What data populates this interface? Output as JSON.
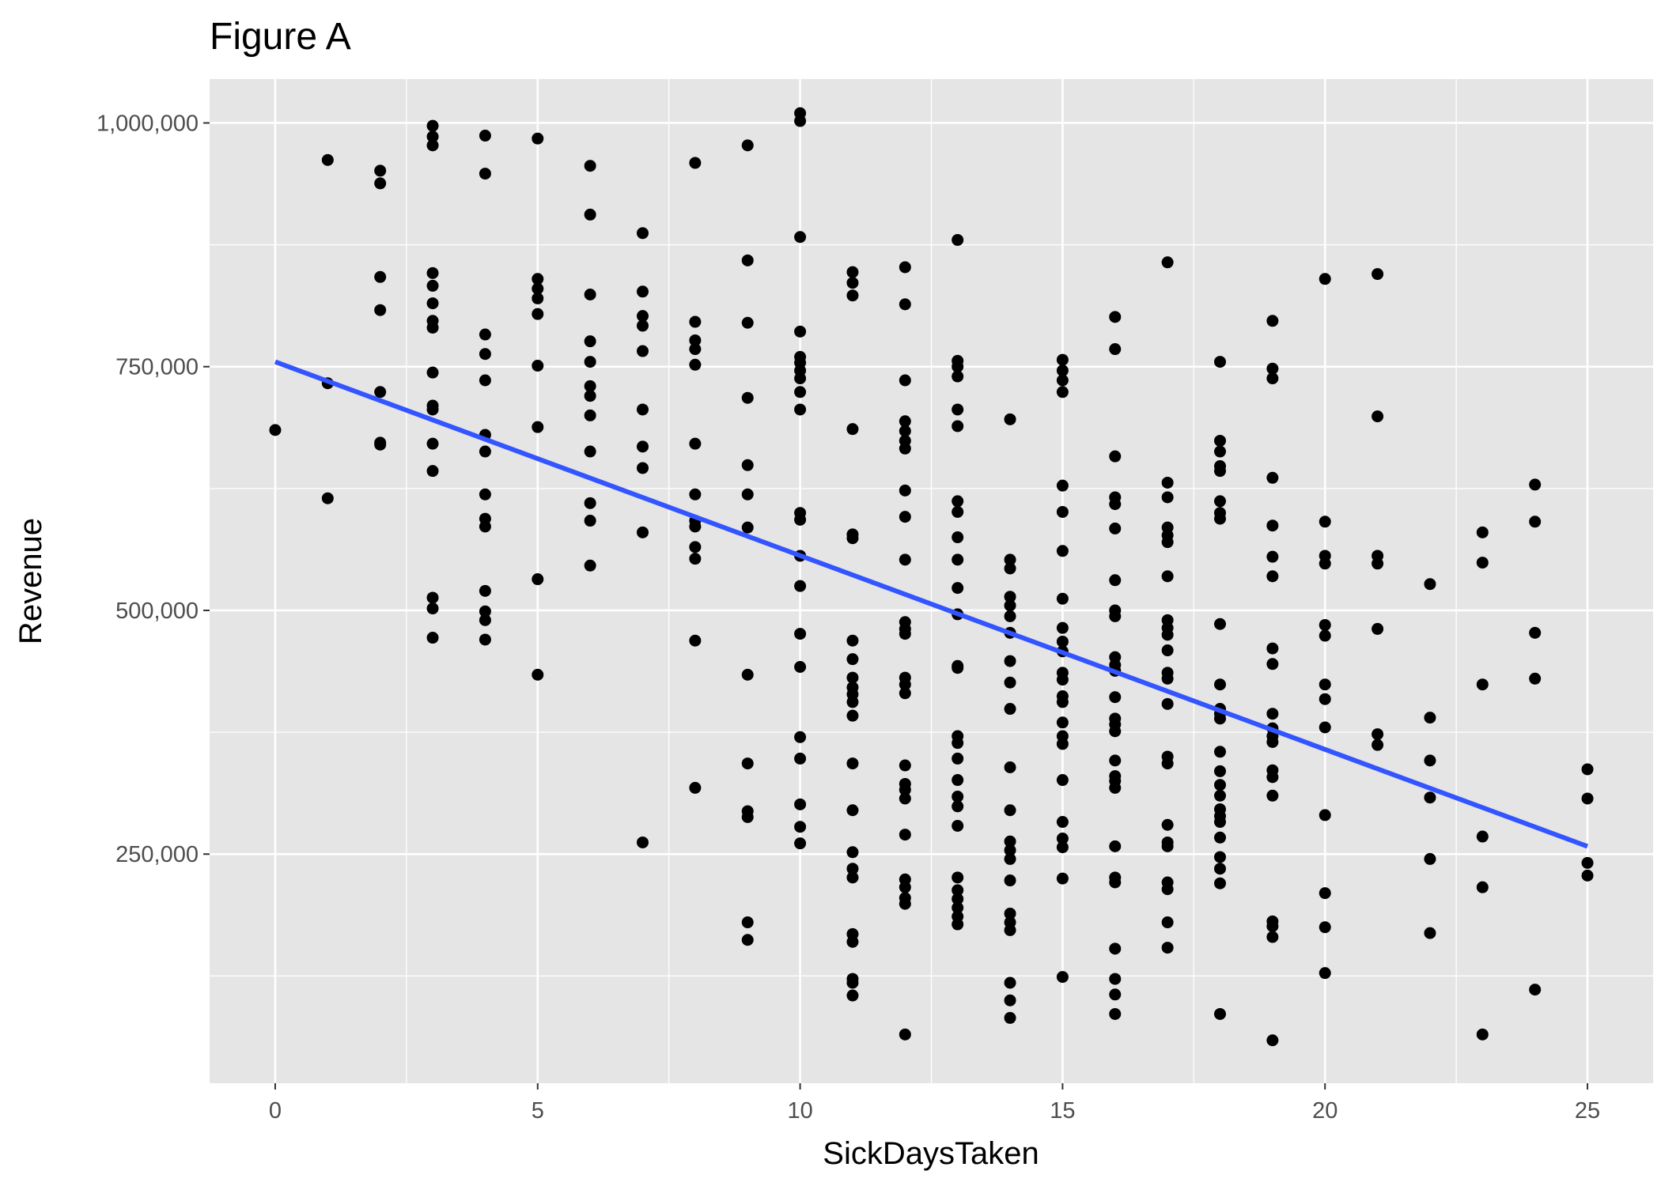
{
  "chart_data": {
    "type": "scatter",
    "title": "Figure A",
    "xlabel": "SickDaysTaken",
    "ylabel": "Revenue",
    "xlim": [
      -1.25,
      26.25
    ],
    "ylim": [
      15000,
      1045000
    ],
    "x_ticks": [
      0,
      5,
      10,
      15,
      20,
      25
    ],
    "x_tick_labels": [
      "0",
      "5",
      "10",
      "15",
      "20",
      "25"
    ],
    "y_ticks": [
      250000,
      500000,
      750000,
      1000000
    ],
    "y_tick_labels": [
      "250,000",
      "500,000",
      "750,000",
      "1,000,000"
    ],
    "grid": true,
    "legend": "none",
    "colors": {
      "panel_background": "#e5e5e5",
      "grid": "#ffffff",
      "points": "#000000",
      "trend_line": "#3355ff",
      "tick_label": "#4d4d4d",
      "tick_mark": "#333333"
    },
    "points": [
      [
        0,
        685000
      ],
      [
        1,
        962000
      ],
      [
        1,
        733000
      ],
      [
        1,
        615000
      ],
      [
        2,
        951000
      ],
      [
        2,
        938000
      ],
      [
        2,
        842000
      ],
      [
        2,
        808000
      ],
      [
        2,
        724000
      ],
      [
        2,
        672000
      ],
      [
        2,
        670000
      ],
      [
        3,
        997000
      ],
      [
        3,
        986000
      ],
      [
        3,
        977000
      ],
      [
        3,
        846000
      ],
      [
        3,
        833000
      ],
      [
        3,
        815000
      ],
      [
        3,
        797000
      ],
      [
        3,
        790000
      ],
      [
        3,
        744000
      ],
      [
        3,
        710000
      ],
      [
        3,
        706000
      ],
      [
        3,
        671000
      ],
      [
        3,
        643000
      ],
      [
        3,
        513000
      ],
      [
        3,
        502000
      ],
      [
        3,
        472000
      ],
      [
        4,
        987000
      ],
      [
        4,
        948000
      ],
      [
        4,
        783000
      ],
      [
        4,
        763000
      ],
      [
        4,
        736000
      ],
      [
        4,
        680000
      ],
      [
        4,
        663000
      ],
      [
        4,
        619000
      ],
      [
        4,
        594000
      ],
      [
        4,
        586000
      ],
      [
        4,
        520000
      ],
      [
        4,
        499000
      ],
      [
        4,
        490000
      ],
      [
        4,
        470000
      ],
      [
        5,
        984000
      ],
      [
        5,
        840000
      ],
      [
        5,
        830000
      ],
      [
        5,
        820000
      ],
      [
        5,
        804000
      ],
      [
        5,
        751000
      ],
      [
        5,
        688000
      ],
      [
        5,
        532000
      ],
      [
        5,
        434000
      ],
      [
        6,
        956000
      ],
      [
        6,
        906000
      ],
      [
        6,
        824000
      ],
      [
        6,
        776000
      ],
      [
        6,
        755000
      ],
      [
        6,
        730000
      ],
      [
        6,
        720000
      ],
      [
        6,
        700000
      ],
      [
        6,
        663000
      ],
      [
        6,
        610000
      ],
      [
        6,
        592000
      ],
      [
        6,
        546000
      ],
      [
        7,
        887000
      ],
      [
        7,
        827000
      ],
      [
        7,
        802000
      ],
      [
        7,
        792000
      ],
      [
        7,
        766000
      ],
      [
        7,
        706000
      ],
      [
        7,
        668000
      ],
      [
        7,
        646000
      ],
      [
        7,
        580000
      ],
      [
        7,
        262000
      ],
      [
        8,
        959000
      ],
      [
        8,
        796000
      ],
      [
        8,
        777000
      ],
      [
        8,
        768000
      ],
      [
        8,
        752000
      ],
      [
        8,
        671000
      ],
      [
        8,
        619000
      ],
      [
        8,
        592000
      ],
      [
        8,
        586000
      ],
      [
        8,
        565000
      ],
      [
        8,
        553000
      ],
      [
        8,
        469000
      ],
      [
        8,
        318000
      ],
      [
        9,
        977000
      ],
      [
        9,
        859000
      ],
      [
        9,
        795000
      ],
      [
        9,
        718000
      ],
      [
        9,
        649000
      ],
      [
        9,
        619000
      ],
      [
        9,
        585000
      ],
      [
        9,
        434000
      ],
      [
        9,
        343000
      ],
      [
        9,
        294000
      ],
      [
        9,
        288000
      ],
      [
        9,
        180000
      ],
      [
        9,
        162000
      ],
      [
        10,
        1010000
      ],
      [
        10,
        1002000
      ],
      [
        10,
        883000
      ],
      [
        10,
        786000
      ],
      [
        10,
        760000
      ],
      [
        10,
        754000
      ],
      [
        10,
        746000
      ],
      [
        10,
        738000
      ],
      [
        10,
        724000
      ],
      [
        10,
        706000
      ],
      [
        10,
        600000
      ],
      [
        10,
        593000
      ],
      [
        10,
        556000
      ],
      [
        10,
        525000
      ],
      [
        10,
        476000
      ],
      [
        10,
        442000
      ],
      [
        10,
        370000
      ],
      [
        10,
        348000
      ],
      [
        10,
        301000
      ],
      [
        10,
        278000
      ],
      [
        10,
        261000
      ],
      [
        11,
        847000
      ],
      [
        11,
        836000
      ],
      [
        11,
        823000
      ],
      [
        11,
        686000
      ],
      [
        11,
        578000
      ],
      [
        11,
        574000
      ],
      [
        11,
        469000
      ],
      [
        11,
        450000
      ],
      [
        11,
        431000
      ],
      [
        11,
        421000
      ],
      [
        11,
        414000
      ],
      [
        11,
        406000
      ],
      [
        11,
        392000
      ],
      [
        11,
        343000
      ],
      [
        11,
        295000
      ],
      [
        11,
        252000
      ],
      [
        11,
        235000
      ],
      [
        11,
        226000
      ],
      [
        11,
        168000
      ],
      [
        11,
        160000
      ],
      [
        11,
        122000
      ],
      [
        11,
        118000
      ],
      [
        11,
        105000
      ],
      [
        12,
        852000
      ],
      [
        12,
        814000
      ],
      [
        12,
        736000
      ],
      [
        12,
        694000
      ],
      [
        12,
        684000
      ],
      [
        12,
        674000
      ],
      [
        12,
        666000
      ],
      [
        12,
        623000
      ],
      [
        12,
        596000
      ],
      [
        12,
        552000
      ],
      [
        12,
        488000
      ],
      [
        12,
        481000
      ],
      [
        12,
        476000
      ],
      [
        12,
        431000
      ],
      [
        12,
        424000
      ],
      [
        12,
        415000
      ],
      [
        12,
        341000
      ],
      [
        12,
        322000
      ],
      [
        12,
        316000
      ],
      [
        12,
        307000
      ],
      [
        12,
        270000
      ],
      [
        12,
        224000
      ],
      [
        12,
        216000
      ],
      [
        12,
        205000
      ],
      [
        12,
        199000
      ],
      [
        12,
        65000
      ],
      [
        13,
        880000
      ],
      [
        13,
        756000
      ],
      [
        13,
        750000
      ],
      [
        13,
        740000
      ],
      [
        13,
        706000
      ],
      [
        13,
        689000
      ],
      [
        13,
        612000
      ],
      [
        13,
        601000
      ],
      [
        13,
        575000
      ],
      [
        13,
        552000
      ],
      [
        13,
        523000
      ],
      [
        13,
        496000
      ],
      [
        13,
        443000
      ],
      [
        13,
        441000
      ],
      [
        13,
        371000
      ],
      [
        13,
        364000
      ],
      [
        13,
        348000
      ],
      [
        13,
        326000
      ],
      [
        13,
        309000
      ],
      [
        13,
        299000
      ],
      [
        13,
        279000
      ],
      [
        13,
        226000
      ],
      [
        13,
        213000
      ],
      [
        13,
        204000
      ],
      [
        13,
        195000
      ],
      [
        13,
        186000
      ],
      [
        13,
        178000
      ],
      [
        14,
        696000
      ],
      [
        14,
        552000
      ],
      [
        14,
        543000
      ],
      [
        14,
        514000
      ],
      [
        14,
        505000
      ],
      [
        14,
        494000
      ],
      [
        14,
        477000
      ],
      [
        14,
        448000
      ],
      [
        14,
        426000
      ],
      [
        14,
        399000
      ],
      [
        14,
        339000
      ],
      [
        14,
        295000
      ],
      [
        14,
        263000
      ],
      [
        14,
        254000
      ],
      [
        14,
        245000
      ],
      [
        14,
        223000
      ],
      [
        14,
        189000
      ],
      [
        14,
        180000
      ],
      [
        14,
        172000
      ],
      [
        14,
        118000
      ],
      [
        14,
        100000
      ],
      [
        14,
        82000
      ],
      [
        15,
        757000
      ],
      [
        15,
        746000
      ],
      [
        15,
        736000
      ],
      [
        15,
        724000
      ],
      [
        15,
        628000
      ],
      [
        15,
        601000
      ],
      [
        15,
        561000
      ],
      [
        15,
        512000
      ],
      [
        15,
        482000
      ],
      [
        15,
        468000
      ],
      [
        15,
        458000
      ],
      [
        15,
        436000
      ],
      [
        15,
        429000
      ],
      [
        15,
        412000
      ],
      [
        15,
        406000
      ],
      [
        15,
        385000
      ],
      [
        15,
        371000
      ],
      [
        15,
        363000
      ],
      [
        15,
        326000
      ],
      [
        15,
        283000
      ],
      [
        15,
        266000
      ],
      [
        15,
        257000
      ],
      [
        15,
        225000
      ],
      [
        15,
        124000
      ],
      [
        16,
        801000
      ],
      [
        16,
        768000
      ],
      [
        16,
        658000
      ],
      [
        16,
        616000
      ],
      [
        16,
        609000
      ],
      [
        16,
        584000
      ],
      [
        16,
        531000
      ],
      [
        16,
        500000
      ],
      [
        16,
        494000
      ],
      [
        16,
        452000
      ],
      [
        16,
        444000
      ],
      [
        16,
        438000
      ],
      [
        16,
        411000
      ],
      [
        16,
        389000
      ],
      [
        16,
        383000
      ],
      [
        16,
        376000
      ],
      [
        16,
        346000
      ],
      [
        16,
        330000
      ],
      [
        16,
        325000
      ],
      [
        16,
        318000
      ],
      [
        16,
        258000
      ],
      [
        16,
        226000
      ],
      [
        16,
        221000
      ],
      [
        16,
        153000
      ],
      [
        16,
        122000
      ],
      [
        16,
        106000
      ],
      [
        16,
        86000
      ],
      [
        17,
        857000
      ],
      [
        17,
        631000
      ],
      [
        17,
        616000
      ],
      [
        17,
        585000
      ],
      [
        17,
        577000
      ],
      [
        17,
        570000
      ],
      [
        17,
        535000
      ],
      [
        17,
        490000
      ],
      [
        17,
        482000
      ],
      [
        17,
        475000
      ],
      [
        17,
        459000
      ],
      [
        17,
        436000
      ],
      [
        17,
        430000
      ],
      [
        17,
        404000
      ],
      [
        17,
        350000
      ],
      [
        17,
        343000
      ],
      [
        17,
        280000
      ],
      [
        17,
        262000
      ],
      [
        17,
        258000
      ],
      [
        17,
        221000
      ],
      [
        17,
        214000
      ],
      [
        17,
        180000
      ],
      [
        17,
        154000
      ],
      [
        18,
        755000
      ],
      [
        18,
        674000
      ],
      [
        18,
        663000
      ],
      [
        18,
        648000
      ],
      [
        18,
        643000
      ],
      [
        18,
        612000
      ],
      [
        18,
        600000
      ],
      [
        18,
        594000
      ],
      [
        18,
        486000
      ],
      [
        18,
        424000
      ],
      [
        18,
        399000
      ],
      [
        18,
        394000
      ],
      [
        18,
        389000
      ],
      [
        18,
        355000
      ],
      [
        18,
        335000
      ],
      [
        18,
        321000
      ],
      [
        18,
        310000
      ],
      [
        18,
        296000
      ],
      [
        18,
        289000
      ],
      [
        18,
        283000
      ],
      [
        18,
        267000
      ],
      [
        18,
        247000
      ],
      [
        18,
        235000
      ],
      [
        18,
        220000
      ],
      [
        18,
        86000
      ],
      [
        19,
        797000
      ],
      [
        19,
        748000
      ],
      [
        19,
        738000
      ],
      [
        19,
        636000
      ],
      [
        19,
        587000
      ],
      [
        19,
        555000
      ],
      [
        19,
        535000
      ],
      [
        19,
        461000
      ],
      [
        19,
        445000
      ],
      [
        19,
        394000
      ],
      [
        19,
        379000
      ],
      [
        19,
        371000
      ],
      [
        19,
        365000
      ],
      [
        19,
        336000
      ],
      [
        19,
        329000
      ],
      [
        19,
        310000
      ],
      [
        19,
        181000
      ],
      [
        19,
        176000
      ],
      [
        19,
        165000
      ],
      [
        19,
        59000
      ],
      [
        20,
        840000
      ],
      [
        20,
        591000
      ],
      [
        20,
        556000
      ],
      [
        20,
        548000
      ],
      [
        20,
        485000
      ],
      [
        20,
        474000
      ],
      [
        20,
        424000
      ],
      [
        20,
        409000
      ],
      [
        20,
        380000
      ],
      [
        20,
        290000
      ],
      [
        20,
        210000
      ],
      [
        20,
        175000
      ],
      [
        20,
        128000
      ],
      [
        21,
        845000
      ],
      [
        21,
        699000
      ],
      [
        21,
        556000
      ],
      [
        21,
        548000
      ],
      [
        21,
        481000
      ],
      [
        21,
        373000
      ],
      [
        21,
        362000
      ],
      [
        22,
        527000
      ],
      [
        22,
        390000
      ],
      [
        22,
        346000
      ],
      [
        22,
        308000
      ],
      [
        22,
        245000
      ],
      [
        22,
        169000
      ],
      [
        23,
        580000
      ],
      [
        23,
        549000
      ],
      [
        23,
        424000
      ],
      [
        23,
        268000
      ],
      [
        23,
        216000
      ],
      [
        23,
        65000
      ],
      [
        24,
        629000
      ],
      [
        24,
        591000
      ],
      [
        24,
        477000
      ],
      [
        24,
        430000
      ],
      [
        24,
        111000
      ],
      [
        25,
        337000
      ],
      [
        25,
        307000
      ],
      [
        25,
        241000
      ],
      [
        25,
        228000
      ]
    ],
    "trend_line": {
      "type": "linear",
      "x": [
        0,
        25
      ],
      "y": [
        755000,
        258000
      ]
    }
  }
}
